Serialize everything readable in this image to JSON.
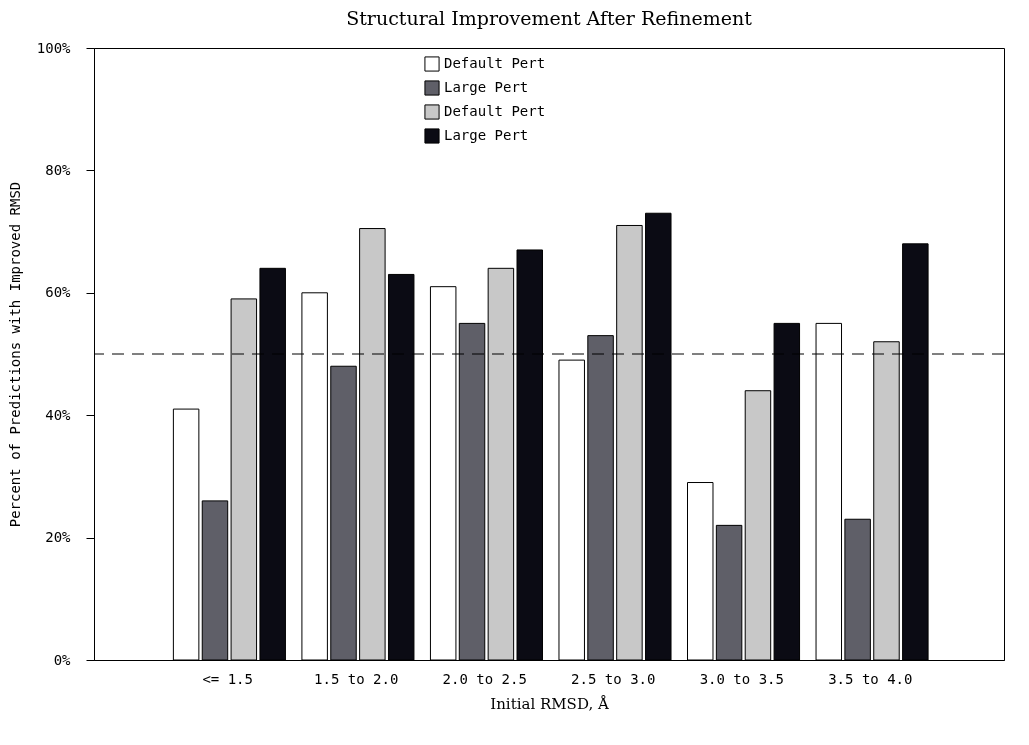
{
  "chart_data": {
    "type": "bar",
    "title": "Structural Improvement After Refinement",
    "xlabel": "Initial RMSD, Å",
    "ylabel": "Percent of Predictions with Improved RMSD",
    "categories": [
      "<= 1.5",
      "1.5 to 2.0",
      "2.0 to 2.5",
      "2.5 to 3.0",
      "3.0 to 3.5",
      "3.5 to 4.0"
    ],
    "series": [
      {
        "name": "Default Pert",
        "color": "#ffffff",
        "values": [
          41,
          60,
          61,
          49,
          29,
          55
        ]
      },
      {
        "name": "Large Pert",
        "color": "#5f5f68",
        "values": [
          26,
          48,
          55,
          53,
          22,
          23
        ]
      },
      {
        "name": "Default Pert",
        "color": "#c8c8c8",
        "values": [
          59,
          70.5,
          64,
          71,
          44,
          52
        ]
      },
      {
        "name": "Large Pert",
        "color": "#0b0b14",
        "values": [
          64,
          63,
          67,
          73,
          55,
          68
        ]
      }
    ],
    "ylim": [
      0,
      100
    ],
    "yticks": [
      {
        "value": 0,
        "label": "0%"
      },
      {
        "value": 20,
        "label": "20%"
      },
      {
        "value": 40,
        "label": "40%"
      },
      {
        "value": 60,
        "label": "60%"
      },
      {
        "value": 80,
        "label": "80%"
      },
      {
        "value": 100,
        "label": "100%"
      }
    ],
    "ref_lines": [
      {
        "axis": "y",
        "value": 50,
        "line_style": "dashed"
      }
    ],
    "legend": "top",
    "grid": false
  }
}
